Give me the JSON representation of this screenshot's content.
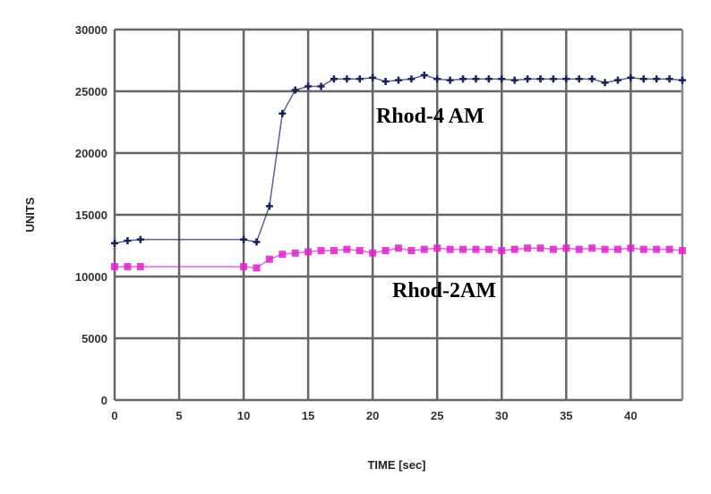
{
  "chart_data": {
    "type": "line",
    "title": "",
    "xlabel": "TIME [sec]",
    "ylabel": "UNITS",
    "xlim": [
      0,
      44
    ],
    "ylim": [
      0,
      30000
    ],
    "xticks": [
      0,
      5,
      10,
      15,
      20,
      25,
      30,
      35,
      40
    ],
    "yticks": [
      0,
      5000,
      10000,
      15000,
      20000,
      25000,
      30000
    ],
    "grid": true,
    "x": [
      0,
      1,
      2,
      10,
      11,
      12,
      13,
      14,
      15,
      16,
      17,
      18,
      19,
      20,
      21,
      22,
      23,
      24,
      25,
      26,
      27,
      28,
      29,
      30,
      31,
      32,
      33,
      34,
      35,
      36,
      37,
      38,
      39,
      40,
      41,
      42,
      43,
      44
    ],
    "series": [
      {
        "name": "Rhod-4 AM",
        "color": "#1a1f5c",
        "values": [
          12700,
          12900,
          13000,
          13000,
          12800,
          15700,
          23200,
          25100,
          25400,
          25400,
          26000,
          26000,
          26000,
          26100,
          25800,
          25900,
          26000,
          26300,
          26000,
          25900,
          26000,
          26000,
          26000,
          26000,
          25900,
          26000,
          26000,
          26000,
          26000,
          26000,
          26000,
          25700,
          25900,
          26100,
          26000,
          26000,
          26000,
          25900
        ]
      },
      {
        "name": "Rhod-2AM",
        "color": "#e020d0",
        "values": [
          10800,
          10800,
          10800,
          10800,
          10700,
          11400,
          11800,
          11900,
          12000,
          12100,
          12100,
          12200,
          12100,
          11900,
          12100,
          12300,
          12100,
          12200,
          12300,
          12200,
          12200,
          12200,
          12200,
          12100,
          12200,
          12300,
          12300,
          12200,
          12300,
          12200,
          12300,
          12200,
          12200,
          12300,
          12200,
          12200,
          12200,
          12100
        ]
      }
    ],
    "annotations": [
      "Rhod-4 AM",
      "Rhod-2AM"
    ]
  }
}
